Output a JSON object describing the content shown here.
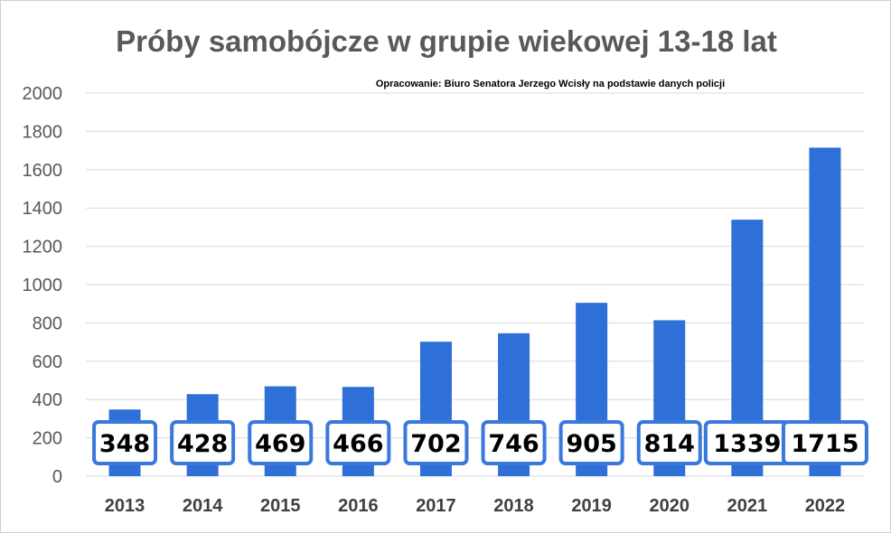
{
  "chart_data": {
    "type": "bar",
    "title": "Próby samobójcze w grupie wiekowej 13-18 lat",
    "source_note": "Opracowanie: Biuro Senatora Jerzego Wcisły na podstawie danych policji",
    "categories": [
      "2013",
      "2014",
      "2015",
      "2016",
      "2017",
      "2018",
      "2019",
      "2020",
      "2021",
      "2022"
    ],
    "values": [
      348,
      428,
      469,
      466,
      702,
      746,
      905,
      814,
      1339,
      1715
    ],
    "ylim": [
      0,
      2000
    ],
    "yticks": [
      0,
      200,
      400,
      600,
      800,
      1000,
      1200,
      1400,
      1600,
      1800,
      2000
    ],
    "grid": true,
    "bar_color": "#2F6FD8",
    "label_border_color": "#3A78DC"
  }
}
